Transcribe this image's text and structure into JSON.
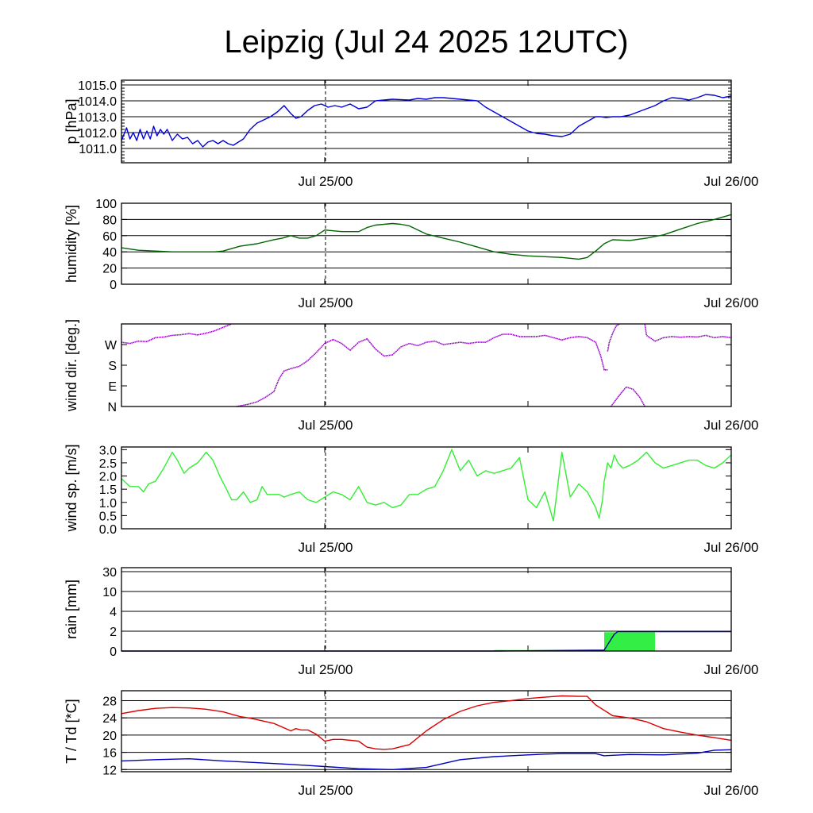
{
  "title": "Leipzig (Jul 24 2025 12UTC)",
  "chart_data": [
    {
      "type": "line",
      "ylabel": "p [hPa]",
      "ylim": [
        1010.1,
        1015.3
      ],
      "yticks": [
        1011.0,
        1012.0,
        1013.0,
        1014.0,
        1015.0
      ],
      "ytick_labels": [
        "1011.0",
        "1012.0",
        "1013.0",
        "1014.0",
        "1015.0"
      ],
      "grid": true,
      "x_tick_labels": [
        "Jul 25/00",
        "Jul 26/00"
      ],
      "xlim_hours": [
        0,
        36
      ],
      "series": [
        {
          "color": "#0000dd",
          "x": [
            0,
            0.3,
            0.5,
            0.7,
            0.9,
            1.1,
            1.3,
            1.5,
            1.7,
            1.9,
            2.1,
            2.3,
            2.5,
            2.7,
            3,
            3.3,
            3.6,
            3.9,
            4.2,
            4.5,
            4.8,
            5.1,
            5.4,
            5.7,
            6,
            6.3,
            6.6,
            6.9,
            7.2,
            7.6,
            8,
            8.4,
            8.8,
            9.2,
            9.6,
            10,
            10.3,
            10.6,
            11,
            11.4,
            11.8,
            12.2,
            12.6,
            13,
            13.5,
            14,
            14.5,
            15,
            16,
            17,
            17.5,
            18,
            18.5,
            19,
            19.5,
            20,
            20.5,
            21,
            21.5,
            22,
            22.5,
            23,
            23.5,
            24,
            24.5,
            25,
            25.5,
            26,
            26.5,
            27,
            27.5,
            28,
            28.3,
            28.6,
            29,
            29.5,
            30,
            30.5,
            31,
            31.5,
            32,
            32.5,
            33,
            33.5,
            34,
            34.5,
            35,
            35.5,
            36
          ],
          "y": [
            1011.5,
            1012.3,
            1011.6,
            1012.0,
            1011.5,
            1012.2,
            1011.6,
            1012.1,
            1011.6,
            1012.4,
            1011.8,
            1012.2,
            1011.9,
            1012.2,
            1011.5,
            1011.9,
            1011.6,
            1011.7,
            1011.3,
            1011.5,
            1011.1,
            1011.4,
            1011.5,
            1011.3,
            1011.5,
            1011.3,
            1011.2,
            1011.4,
            1011.6,
            1012.2,
            1012.6,
            1012.8,
            1013.0,
            1013.3,
            1013.7,
            1013.2,
            1012.9,
            1013.0,
            1013.4,
            1013.7,
            1013.8,
            1013.6,
            1013.7,
            1013.6,
            1013.8,
            1013.5,
            1013.6,
            1014.0,
            1014.1,
            1014.05,
            1014.15,
            1014.1,
            1014.2,
            1014.2,
            1014.15,
            1014.1,
            1014.05,
            1014.0,
            1013.6,
            1013.3,
            1013.0,
            1012.7,
            1012.4,
            1012.1,
            1011.95,
            1011.9,
            1011.8,
            1011.75,
            1011.9,
            1012.4,
            1012.7,
            1013.0,
            1013.0,
            1012.95,
            1013.0,
            1013.0,
            1013.1,
            1013.3,
            1013.5,
            1013.7,
            1014.0,
            1014.2,
            1014.15,
            1014.05,
            1014.2,
            1014.4,
            1014.35,
            1014.2,
            1014.3
          ]
        }
      ]
    },
    {
      "type": "line",
      "ylabel": "humidity [%]",
      "ylim": [
        0,
        100
      ],
      "yticks": [
        0,
        20,
        40,
        60,
        80,
        100
      ],
      "ytick_labels": [
        "0",
        "20",
        "40",
        "60",
        "80",
        "100"
      ],
      "grid": true,
      "x_tick_labels": [
        "Jul 25/00",
        "Jul 26/00"
      ],
      "xlim_hours": [
        0,
        36
      ],
      "series": [
        {
          "color": "#006400",
          "x": [
            0,
            1,
            2,
            3,
            4,
            5,
            5.5,
            6,
            7,
            8,
            9,
            9.5,
            10,
            10.5,
            11,
            11.5,
            12,
            12.5,
            13,
            14,
            14.5,
            15,
            16,
            16.5,
            17,
            18,
            19,
            20,
            21,
            22,
            23,
            24,
            25,
            26,
            27,
            27.5,
            28,
            28.5,
            29,
            30,
            31,
            32,
            33,
            34,
            35,
            36
          ],
          "y": [
            45,
            42,
            41,
            40,
            40,
            40,
            40,
            41,
            47,
            50,
            55,
            57,
            60,
            57,
            57,
            60,
            67,
            66,
            65,
            65,
            70,
            73,
            75,
            74,
            72,
            62,
            57,
            52,
            46,
            40,
            37,
            35,
            34,
            33,
            31,
            33,
            41,
            50,
            55,
            54,
            57,
            61,
            68,
            75,
            80,
            86
          ]
        }
      ]
    },
    {
      "type": "scatter",
      "ylabel": "wind dir. [deg.]",
      "ylim": [
        0,
        360
      ],
      "yticks": [
        0,
        90,
        180,
        270
      ],
      "ytick_labels": [
        "N",
        "E",
        "S",
        "W"
      ],
      "grid": false,
      "x_tick_labels": [
        "Jul 25/00",
        "Jul 26/00"
      ],
      "xlim_hours": [
        0,
        36
      ],
      "series": [
        {
          "color": "#9900cc",
          "x": [
            0,
            0.5,
            1,
            1.5,
            2,
            2.5,
            3,
            3.5,
            4,
            4.5,
            5,
            5.5,
            6,
            6.5
          ],
          "y": [
            280,
            275,
            285,
            283,
            300,
            303,
            310,
            313,
            318,
            312,
            320,
            330,
            345,
            360
          ]
        },
        {
          "color": "#9900cc",
          "x": [
            6.8,
            7.5,
            8,
            8.5,
            9,
            9.3,
            9.6,
            10,
            10.5,
            11,
            11.5,
            12,
            12.5,
            13,
            13.5,
            14,
            14.5,
            15,
            15.5,
            16,
            16.5,
            17,
            17.5,
            18,
            18.5,
            19,
            19.5,
            20,
            20.5,
            21,
            21.5,
            22,
            22.5,
            23,
            23.5,
            24,
            24.5,
            25,
            25.5,
            26,
            26.5,
            27,
            27.5,
            28,
            28.3,
            28.5,
            28.7
          ],
          "y": [
            0,
            10,
            20,
            40,
            65,
            120,
            155,
            165,
            175,
            200,
            235,
            275,
            292,
            275,
            245,
            280,
            295,
            250,
            220,
            225,
            260,
            275,
            265,
            280,
            285,
            270,
            275,
            280,
            275,
            280,
            280,
            300,
            315,
            315,
            305,
            305,
            305,
            310,
            300,
            290,
            300,
            305,
            300,
            280,
            220,
            160,
            160
          ]
        },
        {
          "color": "#9900cc",
          "x": [
            28.7,
            28.8,
            29,
            29.2,
            29.4
          ],
          "y": [
            240,
            280,
            320,
            350,
            360
          ]
        },
        {
          "color": "#9900cc",
          "x": [
            30.9,
            31,
            31.5,
            32,
            32.5,
            33,
            33.5,
            34,
            34.5,
            35,
            35.5,
            36
          ],
          "y": [
            360,
            310,
            285,
            300,
            305,
            302,
            305,
            303,
            310,
            300,
            305,
            300
          ]
        },
        {
          "color": "#9900cc",
          "x": [
            28.9,
            29.3,
            29.8,
            30.2,
            30.6,
            30.9
          ],
          "y": [
            0,
            40,
            85,
            75,
            40,
            0
          ]
        }
      ]
    },
    {
      "type": "line",
      "ylabel": "wind sp. [m/s]",
      "ylim": [
        0,
        3.1
      ],
      "yticks": [
        0,
        0.5,
        1,
        1.5,
        2,
        2.5,
        3
      ],
      "ytick_labels": [
        "0.0",
        "0.5",
        "1.0",
        "1.5",
        "2.0",
        "2.5",
        "3.0"
      ],
      "grid": false,
      "x_tick_labels": [
        "Jul 25/00",
        "Jul 26/00"
      ],
      "xlim_hours": [
        0,
        36
      ],
      "series": [
        {
          "color": "#33ee33",
          "x": [
            0,
            0.5,
            1,
            1.3,
            1.6,
            2,
            2.5,
            3,
            3.3,
            3.7,
            4,
            4.5,
            5,
            5.4,
            5.8,
            6.2,
            6.5,
            6.8,
            7.2,
            7.6,
            8,
            8.3,
            8.6,
            9,
            9.3,
            9.6,
            10,
            10.5,
            11,
            11.5,
            12,
            12.5,
            13,
            13.5,
            14,
            14.5,
            15,
            15.5,
            16,
            16.5,
            17,
            17.5,
            18,
            18.5,
            19,
            19.5,
            20,
            20.5,
            21,
            21.5,
            22,
            22.5,
            23,
            23.5,
            24,
            24.5,
            25,
            25.5,
            26,
            26.5,
            27,
            27.5,
            28,
            28.2,
            28.4,
            28.5,
            28.7,
            28.9,
            29.1,
            29.3,
            29.6,
            30,
            30.5,
            31,
            31.5,
            32,
            32.5,
            33,
            33.5,
            34,
            34.5,
            35,
            35.5,
            36
          ],
          "y": [
            1.9,
            1.6,
            1.6,
            1.4,
            1.7,
            1.8,
            2.3,
            2.9,
            2.6,
            2.1,
            2.3,
            2.5,
            2.9,
            2.6,
            2.0,
            1.5,
            1.1,
            1.1,
            1.4,
            1.0,
            1.1,
            1.6,
            1.3,
            1.3,
            1.3,
            1.2,
            1.3,
            1.4,
            1.1,
            1.0,
            1.2,
            1.4,
            1.3,
            1.1,
            1.6,
            1.0,
            0.9,
            1.0,
            0.8,
            0.9,
            1.3,
            1.3,
            1.5,
            1.6,
            2.2,
            3.0,
            2.2,
            2.6,
            2.0,
            2.2,
            2.1,
            2.2,
            2.3,
            2.7,
            1.1,
            0.8,
            1.4,
            0.3,
            2.9,
            1.2,
            1.7,
            1.4,
            0.8,
            0.4,
            1.1,
            1.8,
            2.5,
            2.3,
            2.8,
            2.5,
            2.3,
            2.4,
            2.6,
            2.9,
            2.5,
            2.3,
            2.4,
            2.5,
            2.6,
            2.6,
            2.4,
            2.3,
            2.5,
            2.8
          ]
        }
      ]
    },
    {
      "type": "area",
      "ylabel": "rain [mm]",
      "ylim_label_scale": [
        "0",
        "30"
      ],
      "yticks": [
        0,
        2,
        4,
        10,
        30
      ],
      "ytick_labels": [
        "0",
        "2",
        "4",
        "10",
        "30"
      ],
      "ytick_positions": [
        0,
        1,
        2,
        3,
        4
      ],
      "grid": true,
      "x_tick_labels": [
        "Jul 25/00",
        "Jul 26/00"
      ],
      "xlim_hours": [
        0,
        36
      ],
      "series": [
        {
          "color": "#33ee44",
          "x": [
            22,
            28.5,
            28.5,
            31.5,
            31.5
          ],
          "y": [
            0.05,
            0.05,
            0.95,
            0.95,
            0
          ]
        },
        {
          "color": "#000088",
          "x": [
            0,
            22,
            28.5,
            29.1,
            29.3,
            36
          ],
          "y": [
            0,
            0,
            0.05,
            0.85,
            0.98,
            0.98
          ]
        }
      ]
    },
    {
      "type": "line",
      "ylabel": "T / Td [*C]",
      "ylim": [
        11.5,
        30.3
      ],
      "yticks": [
        12,
        16,
        20,
        24,
        28
      ],
      "ytick_labels": [
        "12",
        "16",
        "20",
        "24",
        "28"
      ],
      "grid": true,
      "x_tick_labels": [
        "Jul 25/00",
        "Jul 26/00"
      ],
      "xlim_hours": [
        0,
        36
      ],
      "series": [
        {
          "color": "#dd0000",
          "x": [
            0,
            1,
            2,
            3,
            4,
            5,
            6,
            7,
            7.5,
            8,
            9,
            10,
            10.3,
            10.6,
            11,
            11.5,
            12,
            12.5,
            13,
            14,
            14.5,
            15,
            15.5,
            16,
            17,
            18,
            19,
            20,
            21,
            22,
            23,
            24,
            25,
            26,
            27,
            27.5,
            28,
            29,
            30,
            31,
            32,
            33,
            34,
            35,
            36
          ],
          "y": [
            25,
            25.7,
            26.2,
            26.4,
            26.3,
            26.0,
            25.4,
            24.3,
            24.0,
            23.6,
            22.7,
            21.0,
            21.5,
            21.2,
            21.2,
            20.2,
            18.6,
            19.0,
            19.0,
            18.6,
            17.2,
            16.8,
            16.7,
            16.8,
            17.8,
            21.0,
            23.6,
            25.5,
            26.8,
            27.6,
            28.0,
            28.5,
            28.8,
            29.1,
            29.0,
            29.0,
            27.0,
            24.5,
            24.0,
            23.1,
            21.5,
            20.7,
            20.0,
            19.4,
            18.8
          ]
        },
        {
          "color": "#0000bb",
          "x": [
            0,
            2,
            4,
            6,
            8,
            10,
            12,
            14,
            16,
            18,
            20,
            22,
            24,
            25,
            26,
            27,
            28,
            28.5,
            30,
            32,
            34,
            35,
            36
          ],
          "y": [
            14.0,
            14.3,
            14.5,
            14.0,
            13.6,
            13.2,
            12.7,
            12.2,
            12.0,
            12.5,
            14.3,
            15.0,
            15.4,
            15.6,
            15.7,
            15.7,
            15.7,
            15.2,
            15.5,
            15.4,
            15.8,
            16.5,
            16.6
          ]
        }
      ]
    }
  ]
}
